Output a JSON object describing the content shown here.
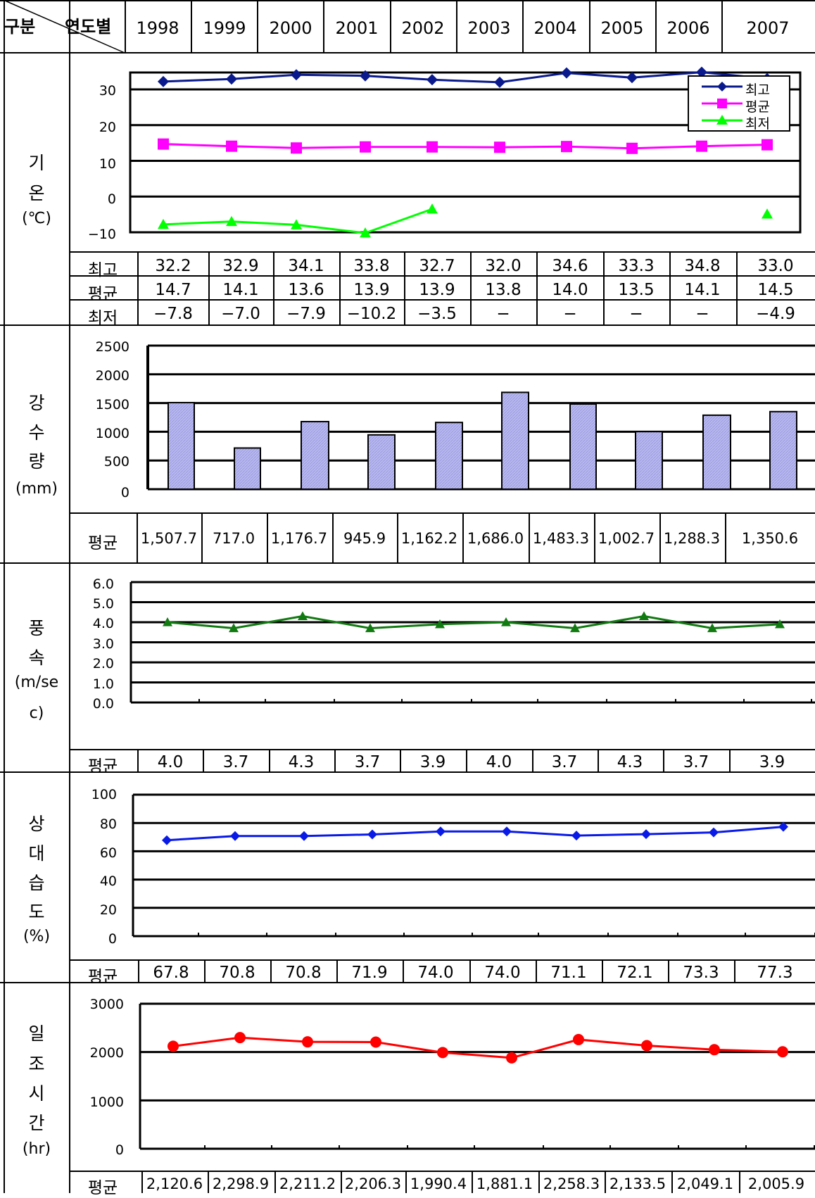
{
  "header": {
    "corner_left": "구분",
    "corner_right": "연도별",
    "years": [
      "1998",
      "1999",
      "2000",
      "2001",
      "2002",
      "2003",
      "2004",
      "2005",
      "2006",
      "2007"
    ]
  },
  "sections": {
    "temperature": {
      "category": [
        "기",
        "온",
        "(℃)"
      ],
      "rows": [
        {
          "label": "최고",
          "values": [
            "32.2",
            "32.9",
            "34.1",
            "33.8",
            "32.7",
            "32.0",
            "34.6",
            "33.3",
            "34.8",
            "33.0"
          ]
        },
        {
          "label": "평균",
          "values": [
            "14.7",
            "14.1",
            "13.6",
            "13.9",
            "13.9",
            "13.8",
            "14.0",
            "13.5",
            "14.1",
            "14.5"
          ]
        },
        {
          "label": "최저",
          "values": [
            "−7.8",
            "−7.0",
            "−7.9",
            "−10.2",
            "−3.5",
            "−",
            "−",
            "−",
            "−",
            "−4.9"
          ]
        }
      ]
    },
    "precipitation": {
      "category": [
        "강",
        "수",
        "량",
        "(mm)"
      ],
      "row": {
        "label": "평균",
        "values": [
          "1,507.7",
          "717.0",
          "1,176.7",
          "945.9",
          "1,162.2",
          "1,686.0",
          "1,483.3",
          "1,002.7",
          "1,288.3",
          "1,350.6"
        ]
      }
    },
    "wind": {
      "category": [
        "풍",
        "속",
        "(m/se",
        "c)"
      ],
      "row": {
        "label": "평균",
        "values": [
          "4.0",
          "3.7",
          "4.3",
          "3.7",
          "3.9",
          "4.0",
          "3.7",
          "4.3",
          "3.7",
          "3.9"
        ]
      }
    },
    "humidity": {
      "category": [
        "상",
        "대",
        "습",
        "도",
        "(%)"
      ],
      "row": {
        "label": "평균",
        "values": [
          "67.8",
          "70.8",
          "70.8",
          "71.9",
          "74.0",
          "74.0",
          "71.1",
          "72.1",
          "73.3",
          "77.3"
        ]
      }
    },
    "sunshine": {
      "category": [
        "일",
        "조",
        "시",
        "간",
        "(hr)"
      ],
      "row": {
        "label": "평균",
        "values": [
          "2,120.6",
          "2,298.9",
          "2,211.2",
          "2,206.3",
          "1,990.4",
          "1,881.1",
          "2,258.3",
          "2,133.5",
          "2,049.1",
          "2,005.9"
        ]
      }
    }
  },
  "chart_data": [
    {
      "type": "line",
      "id": "temperature",
      "categories": [
        "1998",
        "1999",
        "2000",
        "2001",
        "2002",
        "2003",
        "2004",
        "2005",
        "2006",
        "2007"
      ],
      "series": [
        {
          "name": "최고",
          "color": "#0a1a8c",
          "marker": "diamond",
          "values": [
            32.2,
            32.9,
            34.1,
            33.8,
            32.7,
            32.0,
            34.6,
            33.3,
            34.8,
            33.0
          ]
        },
        {
          "name": "평균",
          "color": "#ff00ff",
          "marker": "square",
          "values": [
            14.7,
            14.1,
            13.6,
            13.9,
            13.9,
            13.8,
            14.0,
            13.5,
            14.1,
            14.5
          ]
        },
        {
          "name": "최저",
          "color": "#00ff00",
          "marker": "triangle",
          "values": [
            -7.8,
            -7.0,
            -7.9,
            -10.2,
            -3.5,
            null,
            null,
            null,
            null,
            -4.9
          ]
        }
      ],
      "yticks": [
        "30",
        "20",
        "10",
        "0",
        "−10"
      ],
      "ylim": [
        -10,
        35
      ],
      "grid": true,
      "legend": "top-right"
    },
    {
      "type": "bar",
      "id": "precipitation",
      "categories": [
        "1998",
        "1999",
        "2000",
        "2001",
        "2002",
        "2003",
        "2004",
        "2005",
        "2006",
        "2007"
      ],
      "values": [
        1507.7,
        717.0,
        1176.7,
        945.9,
        1162.2,
        1686.0,
        1483.3,
        1002.7,
        1288.3,
        1350.6
      ],
      "color": "#b9b9ef",
      "yticks": [
        "2500",
        "2000",
        "1500",
        "1000",
        "500",
        "0"
      ],
      "ylim": [
        0,
        2500
      ],
      "grid": true
    },
    {
      "type": "line",
      "id": "wind",
      "categories": [
        "1998",
        "1999",
        "2000",
        "2001",
        "2002",
        "2003",
        "2004",
        "2005",
        "2006",
        "2007"
      ],
      "values": [
        4.0,
        3.7,
        4.3,
        3.7,
        3.9,
        4.0,
        3.7,
        4.3,
        3.7,
        3.9
      ],
      "color": "#117a11",
      "marker": "triangle",
      "yticks": [
        "6.0",
        "5.0",
        "4.0",
        "3.0",
        "2.0",
        "1.0",
        "0.0"
      ],
      "ylim": [
        0,
        6
      ],
      "grid": true
    },
    {
      "type": "line",
      "id": "humidity",
      "categories": [
        "1998",
        "1999",
        "2000",
        "2001",
        "2002",
        "2003",
        "2004",
        "2005",
        "2006",
        "2007"
      ],
      "values": [
        67.8,
        70.8,
        70.8,
        71.9,
        74.0,
        74.0,
        71.1,
        72.1,
        73.3,
        77.3
      ],
      "color": "#0a1ae6",
      "marker": "diamond",
      "yticks": [
        "100",
        "80",
        "60",
        "40",
        "20",
        "0"
      ],
      "ylim": [
        0,
        100
      ],
      "grid": true
    },
    {
      "type": "line",
      "id": "sunshine",
      "categories": [
        "1998",
        "1999",
        "2000",
        "2001",
        "2002",
        "2003",
        "2004",
        "2005",
        "2006",
        "2007"
      ],
      "values": [
        2120.6,
        2298.9,
        2211.2,
        2206.3,
        1990.4,
        1881.1,
        2258.3,
        2133.5,
        2049.1,
        2005.9
      ],
      "color": "#ff0000",
      "marker": "circle",
      "yticks": [
        "3000",
        "2000",
        "1000",
        "0"
      ],
      "ylim": [
        0,
        3000
      ],
      "grid": true
    }
  ]
}
